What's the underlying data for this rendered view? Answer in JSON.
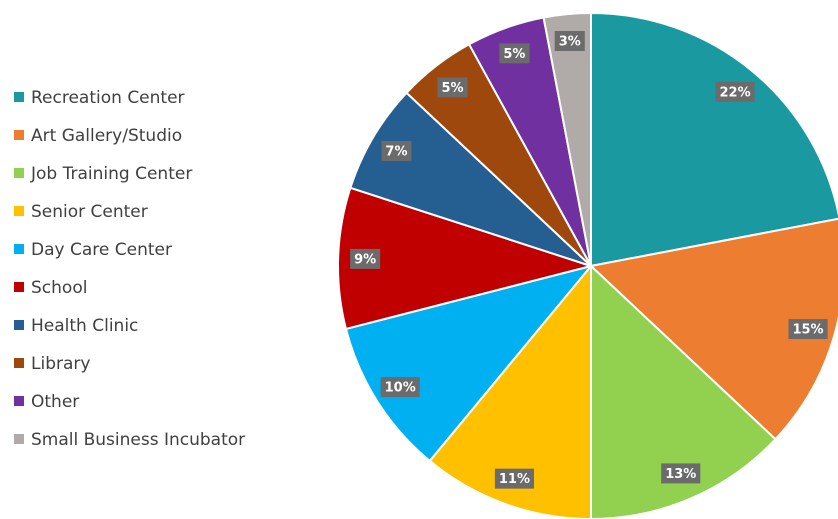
{
  "chart_data": {
    "type": "pie",
    "categories": [
      "Recreation Center",
      "Art Gallery/Studio",
      "Job Training Center",
      "Senior Center",
      "Day Care Center",
      "School",
      "Health Clinic",
      "Library",
      "Other",
      "Small Business Incubator"
    ],
    "values": [
      22,
      15,
      13,
      11,
      10,
      9,
      7,
      5,
      5,
      3
    ],
    "value_labels": [
      "22%",
      "15%",
      "13%",
      "11%",
      "10%",
      "9%",
      "7%",
      "5%",
      "5%",
      "3%"
    ],
    "colors": [
      "#1a9aa0",
      "#ed7d31",
      "#92d050",
      "#ffc000",
      "#00b0f0",
      "#c00000",
      "#255e91",
      "#9e480e",
      "#7030a0",
      "#b0aaa8"
    ],
    "legend": "left"
  }
}
